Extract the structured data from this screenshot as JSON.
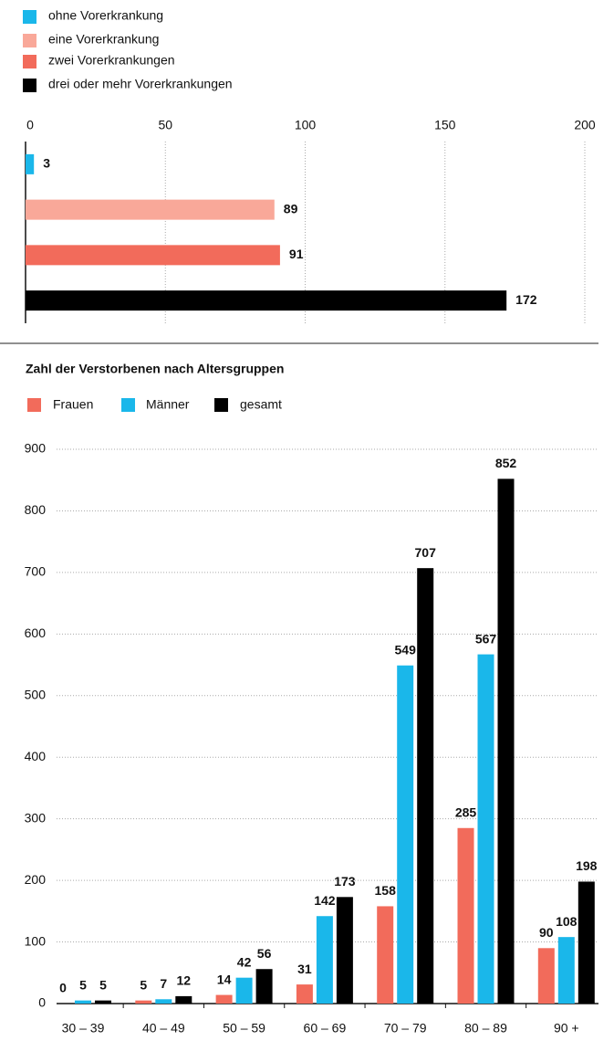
{
  "chart_data": [
    {
      "type": "bar",
      "orientation": "horizontal",
      "categories": [
        "ohne Vorerkrankung",
        "eine Vorerkrankung",
        "zwei Vorerkrankungen",
        "drei oder mehr Vorerkrankungen"
      ],
      "values": [
        3,
        89,
        91,
        172
      ],
      "colors": [
        "#1ab7ea",
        "#f9a899",
        "#f26b5b",
        "#000000"
      ],
      "xlim": [
        0,
        200
      ],
      "xticks": [
        0,
        50,
        100,
        150,
        200
      ],
      "grid": true,
      "legend": "top-left"
    },
    {
      "type": "bar",
      "title": "Zahl der Verstorbenen nach Altersgruppen",
      "categories": [
        "30 – 39",
        "40 – 49",
        "50 – 59",
        "60 – 69",
        "70 – 79",
        "80 – 89",
        "90 +"
      ],
      "series": [
        {
          "name": "Frauen",
          "color": "#f26b5b",
          "values": [
            0,
            5,
            14,
            31,
            158,
            285,
            90
          ]
        },
        {
          "name": "Männer",
          "color": "#1ab7ea",
          "values": [
            5,
            7,
            42,
            142,
            549,
            567,
            108
          ]
        },
        {
          "name": "gesamt",
          "color": "#000000",
          "values": [
            5,
            12,
            56,
            173,
            707,
            852,
            198
          ]
        }
      ],
      "ylim": [
        0,
        900
      ],
      "yticks": [
        0,
        100,
        200,
        300,
        400,
        500,
        600,
        700,
        800,
        900
      ],
      "grid": true,
      "legend": "top-left"
    }
  ]
}
